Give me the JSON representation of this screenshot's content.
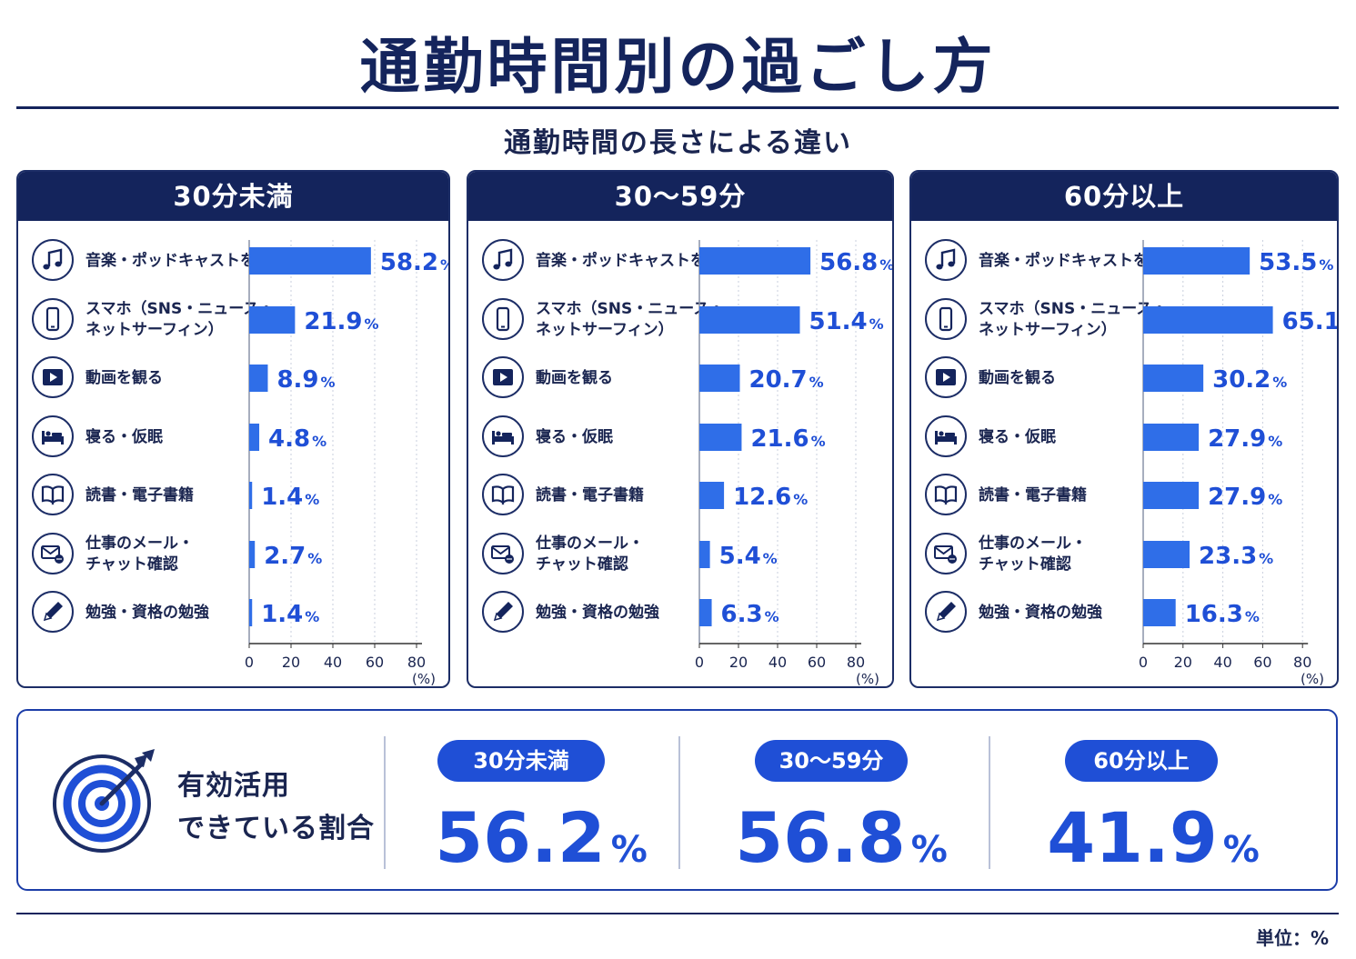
{
  "title": "通勤時間別の過ごし方",
  "subtitle": "通勤時間の長さによる違い",
  "colors": {
    "navy": "#14245c",
    "bar": "#2f6ee8",
    "accent": "#1f4fd6"
  },
  "activities": [
    {
      "label": "音楽・ポッドキャストを聴く",
      "icon": "music-note-icon"
    },
    {
      "label": "スマホ（SNS・ニュース・\nネットサーフィン）",
      "icon": "smartphone-icon"
    },
    {
      "label": "動画を観る",
      "icon": "video-play-icon"
    },
    {
      "label": "寝る・仮眠",
      "icon": "bed-icon"
    },
    {
      "label": "読書・電子書籍",
      "icon": "book-icon"
    },
    {
      "label": "仕事のメール・\nチャット確認",
      "icon": "mail-chat-icon"
    },
    {
      "label": "勉強・資格の勉強",
      "icon": "pencil-icon"
    }
  ],
  "chart_data": [
    {
      "type": "bar",
      "title": "30分未満",
      "categories": [
        "音楽・ポッドキャストを聴く",
        "スマホ（SNS・ニュース・ネットサーフィン）",
        "動画を観る",
        "寝る・仮眠",
        "読書・電子書籍",
        "仕事のメール・チャット確認",
        "勉強・資格の勉強"
      ],
      "values": [
        58.2,
        21.9,
        8.9,
        4.8,
        1.4,
        2.7,
        1.4
      ],
      "value_labels": [
        "58.2",
        "21.9",
        "8.9",
        "4.8",
        "1.4",
        "2.7",
        "1.4"
      ],
      "xlim": [
        0,
        80
      ],
      "xticks": [
        "0",
        "20",
        "40",
        "60",
        "80"
      ],
      "xlabel": "(%)",
      "orientation": "horizontal",
      "grid": true
    },
    {
      "type": "bar",
      "title": "30〜59分",
      "categories": [
        "音楽・ポッドキャストを聴く",
        "スマホ（SNS・ニュース・ネットサーフィン）",
        "動画を観る",
        "寝る・仮眠",
        "読書・電子書籍",
        "仕事のメール・チャット確認",
        "勉強・資格の勉強"
      ],
      "values": [
        56.8,
        51.4,
        20.7,
        21.6,
        12.6,
        5.4,
        6.3
      ],
      "value_labels": [
        "56.8",
        "51.4",
        "20.7",
        "21.6",
        "12.6",
        "5.4",
        "6.3"
      ],
      "xlim": [
        0,
        80
      ],
      "xticks": [
        "0",
        "20",
        "40",
        "60",
        "80"
      ],
      "xlabel": "(%)",
      "orientation": "horizontal",
      "grid": true
    },
    {
      "type": "bar",
      "title": "60分以上",
      "categories": [
        "音楽・ポッドキャストを聴く",
        "スマホ（SNS・ニュース・ネットサーフィン）",
        "動画を観る",
        "寝る・仮眠",
        "読書・電子書籍",
        "仕事のメール・チャット確認",
        "勉強・資格の勉強"
      ],
      "values": [
        53.5,
        65.1,
        30.2,
        27.9,
        27.9,
        23.3,
        16.3
      ],
      "value_labels": [
        "53.5",
        "65.1",
        "30.2",
        "27.9",
        "27.9",
        "23.3",
        "16.3"
      ],
      "xlim": [
        0,
        80
      ],
      "xticks": [
        "0",
        "20",
        "40",
        "60",
        "80"
      ],
      "xlabel": "(%)",
      "orientation": "horizontal",
      "grid": true
    }
  ],
  "percent_sign": "%",
  "summary": {
    "label_line1": "有効活用",
    "label_line2": "できている割合",
    "icon": "target-arrow-icon",
    "items": [
      {
        "group": "30分未満",
        "value": "56.2",
        "unit": "%"
      },
      {
        "group": "30〜59分",
        "value": "56.8",
        "unit": "%"
      },
      {
        "group": "60分以上",
        "value": "41.9",
        "unit": "%"
      }
    ]
  },
  "unit_note": "単位：%"
}
